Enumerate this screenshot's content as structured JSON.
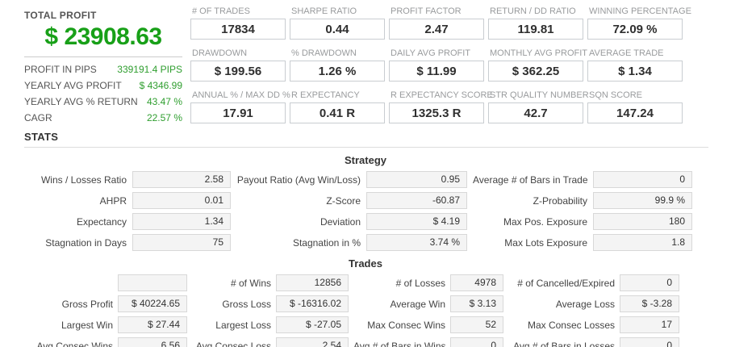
{
  "colors": {
    "profit_green": "#18a018",
    "value_green": "#2f9e2f"
  },
  "summary": {
    "title": "TOTAL PROFIT",
    "total_profit": "$ 23908.63",
    "rows": [
      {
        "label": "PROFIT IN PIPS",
        "value": "339191.4 PIPS"
      },
      {
        "label": "YEARLY AVG PROFIT",
        "value": "$ 4346.99"
      },
      {
        "label": "YEARLY AVG % RETURN",
        "value": "43.47 %"
      },
      {
        "label": "CAGR",
        "value": "22.57 %"
      }
    ]
  },
  "metrics": [
    {
      "label": "# OF TRADES",
      "value": "17834"
    },
    {
      "label": "SHARPE RATIO",
      "value": "0.44"
    },
    {
      "label": "PROFIT FACTOR",
      "value": "2.47"
    },
    {
      "label": "RETURN / DD RATIO",
      "value": "119.81"
    },
    {
      "label": "WINNING PERCENTAGE",
      "value": "72.09 %"
    },
    {
      "label": "DRAWDOWN",
      "value": "$ 199.56"
    },
    {
      "label": "% DRAWDOWN",
      "value": "1.26 %"
    },
    {
      "label": "DAILY AVG PROFIT",
      "value": "$ 11.99"
    },
    {
      "label": "MONTHLY AVG PROFIT",
      "value": "$ 362.25"
    },
    {
      "label": "AVERAGE TRADE",
      "value": "$ 1.34"
    },
    {
      "label": "ANNUAL % / MAX DD %",
      "value": "17.91"
    },
    {
      "label": "R EXPECTANCY",
      "value": "0.41 R"
    },
    {
      "label": "R EXPECTANCY SCORE",
      "value": "1325.3 R"
    },
    {
      "label": "STR QUALITY NUMBER",
      "value": "42.7"
    },
    {
      "label": "SQN SCORE",
      "value": "147.24"
    }
  ],
  "stats": {
    "heading": "STATS",
    "strategy": {
      "heading": "Strategy",
      "cells": [
        {
          "label": "Wins / Losses Ratio",
          "value": "2.58"
        },
        {
          "label": "Payout Ratio (Avg Win/Loss)",
          "value": "0.95"
        },
        {
          "label": "Average # of Bars in Trade",
          "value": "0"
        },
        {
          "label": "AHPR",
          "value": "0.01"
        },
        {
          "label": "Z-Score",
          "value": "-60.87"
        },
        {
          "label": "Z-Probability",
          "value": "99.9 %"
        },
        {
          "label": "Expectancy",
          "value": "1.34"
        },
        {
          "label": "Deviation",
          "value": "$ 4.19"
        },
        {
          "label": "Max Pos. Exposure",
          "value": "180"
        },
        {
          "label": "Stagnation in Days",
          "value": "75"
        },
        {
          "label": "Stagnation in %",
          "value": "3.74 %"
        },
        {
          "label": "Max Lots Exposure",
          "value": "1.8"
        }
      ]
    },
    "trades": {
      "heading": "Trades",
      "cells": [
        {
          "label": "",
          "value": ""
        },
        {
          "label": "# of Wins",
          "value": "12856"
        },
        {
          "label": "# of Losses",
          "value": "4978"
        },
        {
          "label": "# of Cancelled/Expired",
          "value": "0"
        },
        {
          "label": "Gross Profit",
          "value": "$ 40224.65"
        },
        {
          "label": "Gross Loss",
          "value": "$ -16316.02"
        },
        {
          "label": "Average Win",
          "value": "$ 3.13"
        },
        {
          "label": "Average Loss",
          "value": "$ -3.28"
        },
        {
          "label": "Largest Win",
          "value": "$ 27.44"
        },
        {
          "label": "Largest Loss",
          "value": "$ -27.05"
        },
        {
          "label": "Max Consec Wins",
          "value": "52"
        },
        {
          "label": "Max Consec Losses",
          "value": "17"
        },
        {
          "label": "Avg Consec Wins",
          "value": "6.56"
        },
        {
          "label": "Avg Consec Loss",
          "value": "2.54"
        },
        {
          "label": "Avg # of Bars in Wins",
          "value": "0"
        },
        {
          "label": "Avg # of Bars in Losses",
          "value": "0"
        }
      ]
    }
  }
}
